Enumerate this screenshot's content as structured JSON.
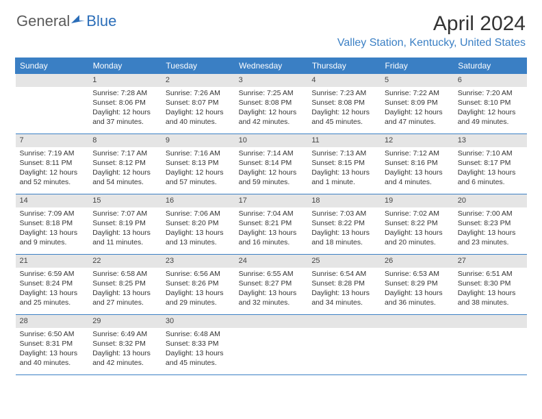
{
  "logo": {
    "text1": "General",
    "text2": "Blue"
  },
  "title": "April 2024",
  "location": "Valley Station, Kentucky, United States",
  "colors": {
    "header_bg": "#3a7fc4",
    "header_text": "#ffffff",
    "daynum_bg": "#e5e5e5",
    "border": "#3a7fc4",
    "location_text": "#3a7fc4",
    "body_text": "#333333",
    "logo_gray": "#5a5a5a"
  },
  "weekdays": [
    "Sunday",
    "Monday",
    "Tuesday",
    "Wednesday",
    "Thursday",
    "Friday",
    "Saturday"
  ],
  "weeks": [
    [
      {
        "day": "",
        "sunrise": "",
        "sunset": "",
        "daylight": ""
      },
      {
        "day": "1",
        "sunrise": "Sunrise: 7:28 AM",
        "sunset": "Sunset: 8:06 PM",
        "daylight": "Daylight: 12 hours and 37 minutes."
      },
      {
        "day": "2",
        "sunrise": "Sunrise: 7:26 AM",
        "sunset": "Sunset: 8:07 PM",
        "daylight": "Daylight: 12 hours and 40 minutes."
      },
      {
        "day": "3",
        "sunrise": "Sunrise: 7:25 AM",
        "sunset": "Sunset: 8:08 PM",
        "daylight": "Daylight: 12 hours and 42 minutes."
      },
      {
        "day": "4",
        "sunrise": "Sunrise: 7:23 AM",
        "sunset": "Sunset: 8:08 PM",
        "daylight": "Daylight: 12 hours and 45 minutes."
      },
      {
        "day": "5",
        "sunrise": "Sunrise: 7:22 AM",
        "sunset": "Sunset: 8:09 PM",
        "daylight": "Daylight: 12 hours and 47 minutes."
      },
      {
        "day": "6",
        "sunrise": "Sunrise: 7:20 AM",
        "sunset": "Sunset: 8:10 PM",
        "daylight": "Daylight: 12 hours and 49 minutes."
      }
    ],
    [
      {
        "day": "7",
        "sunrise": "Sunrise: 7:19 AM",
        "sunset": "Sunset: 8:11 PM",
        "daylight": "Daylight: 12 hours and 52 minutes."
      },
      {
        "day": "8",
        "sunrise": "Sunrise: 7:17 AM",
        "sunset": "Sunset: 8:12 PM",
        "daylight": "Daylight: 12 hours and 54 minutes."
      },
      {
        "day": "9",
        "sunrise": "Sunrise: 7:16 AM",
        "sunset": "Sunset: 8:13 PM",
        "daylight": "Daylight: 12 hours and 57 minutes."
      },
      {
        "day": "10",
        "sunrise": "Sunrise: 7:14 AM",
        "sunset": "Sunset: 8:14 PM",
        "daylight": "Daylight: 12 hours and 59 minutes."
      },
      {
        "day": "11",
        "sunrise": "Sunrise: 7:13 AM",
        "sunset": "Sunset: 8:15 PM",
        "daylight": "Daylight: 13 hours and 1 minute."
      },
      {
        "day": "12",
        "sunrise": "Sunrise: 7:12 AM",
        "sunset": "Sunset: 8:16 PM",
        "daylight": "Daylight: 13 hours and 4 minutes."
      },
      {
        "day": "13",
        "sunrise": "Sunrise: 7:10 AM",
        "sunset": "Sunset: 8:17 PM",
        "daylight": "Daylight: 13 hours and 6 minutes."
      }
    ],
    [
      {
        "day": "14",
        "sunrise": "Sunrise: 7:09 AM",
        "sunset": "Sunset: 8:18 PM",
        "daylight": "Daylight: 13 hours and 9 minutes."
      },
      {
        "day": "15",
        "sunrise": "Sunrise: 7:07 AM",
        "sunset": "Sunset: 8:19 PM",
        "daylight": "Daylight: 13 hours and 11 minutes."
      },
      {
        "day": "16",
        "sunrise": "Sunrise: 7:06 AM",
        "sunset": "Sunset: 8:20 PM",
        "daylight": "Daylight: 13 hours and 13 minutes."
      },
      {
        "day": "17",
        "sunrise": "Sunrise: 7:04 AM",
        "sunset": "Sunset: 8:21 PM",
        "daylight": "Daylight: 13 hours and 16 minutes."
      },
      {
        "day": "18",
        "sunrise": "Sunrise: 7:03 AM",
        "sunset": "Sunset: 8:22 PM",
        "daylight": "Daylight: 13 hours and 18 minutes."
      },
      {
        "day": "19",
        "sunrise": "Sunrise: 7:02 AM",
        "sunset": "Sunset: 8:22 PM",
        "daylight": "Daylight: 13 hours and 20 minutes."
      },
      {
        "day": "20",
        "sunrise": "Sunrise: 7:00 AM",
        "sunset": "Sunset: 8:23 PM",
        "daylight": "Daylight: 13 hours and 23 minutes."
      }
    ],
    [
      {
        "day": "21",
        "sunrise": "Sunrise: 6:59 AM",
        "sunset": "Sunset: 8:24 PM",
        "daylight": "Daylight: 13 hours and 25 minutes."
      },
      {
        "day": "22",
        "sunrise": "Sunrise: 6:58 AM",
        "sunset": "Sunset: 8:25 PM",
        "daylight": "Daylight: 13 hours and 27 minutes."
      },
      {
        "day": "23",
        "sunrise": "Sunrise: 6:56 AM",
        "sunset": "Sunset: 8:26 PM",
        "daylight": "Daylight: 13 hours and 29 minutes."
      },
      {
        "day": "24",
        "sunrise": "Sunrise: 6:55 AM",
        "sunset": "Sunset: 8:27 PM",
        "daylight": "Daylight: 13 hours and 32 minutes."
      },
      {
        "day": "25",
        "sunrise": "Sunrise: 6:54 AM",
        "sunset": "Sunset: 8:28 PM",
        "daylight": "Daylight: 13 hours and 34 minutes."
      },
      {
        "day": "26",
        "sunrise": "Sunrise: 6:53 AM",
        "sunset": "Sunset: 8:29 PM",
        "daylight": "Daylight: 13 hours and 36 minutes."
      },
      {
        "day": "27",
        "sunrise": "Sunrise: 6:51 AM",
        "sunset": "Sunset: 8:30 PM",
        "daylight": "Daylight: 13 hours and 38 minutes."
      }
    ],
    [
      {
        "day": "28",
        "sunrise": "Sunrise: 6:50 AM",
        "sunset": "Sunset: 8:31 PM",
        "daylight": "Daylight: 13 hours and 40 minutes."
      },
      {
        "day": "29",
        "sunrise": "Sunrise: 6:49 AM",
        "sunset": "Sunset: 8:32 PM",
        "daylight": "Daylight: 13 hours and 42 minutes."
      },
      {
        "day": "30",
        "sunrise": "Sunrise: 6:48 AM",
        "sunset": "Sunset: 8:33 PM",
        "daylight": "Daylight: 13 hours and 45 minutes."
      },
      {
        "day": "",
        "sunrise": "",
        "sunset": "",
        "daylight": ""
      },
      {
        "day": "",
        "sunrise": "",
        "sunset": "",
        "daylight": ""
      },
      {
        "day": "",
        "sunrise": "",
        "sunset": "",
        "daylight": ""
      },
      {
        "day": "",
        "sunrise": "",
        "sunset": "",
        "daylight": ""
      }
    ]
  ]
}
